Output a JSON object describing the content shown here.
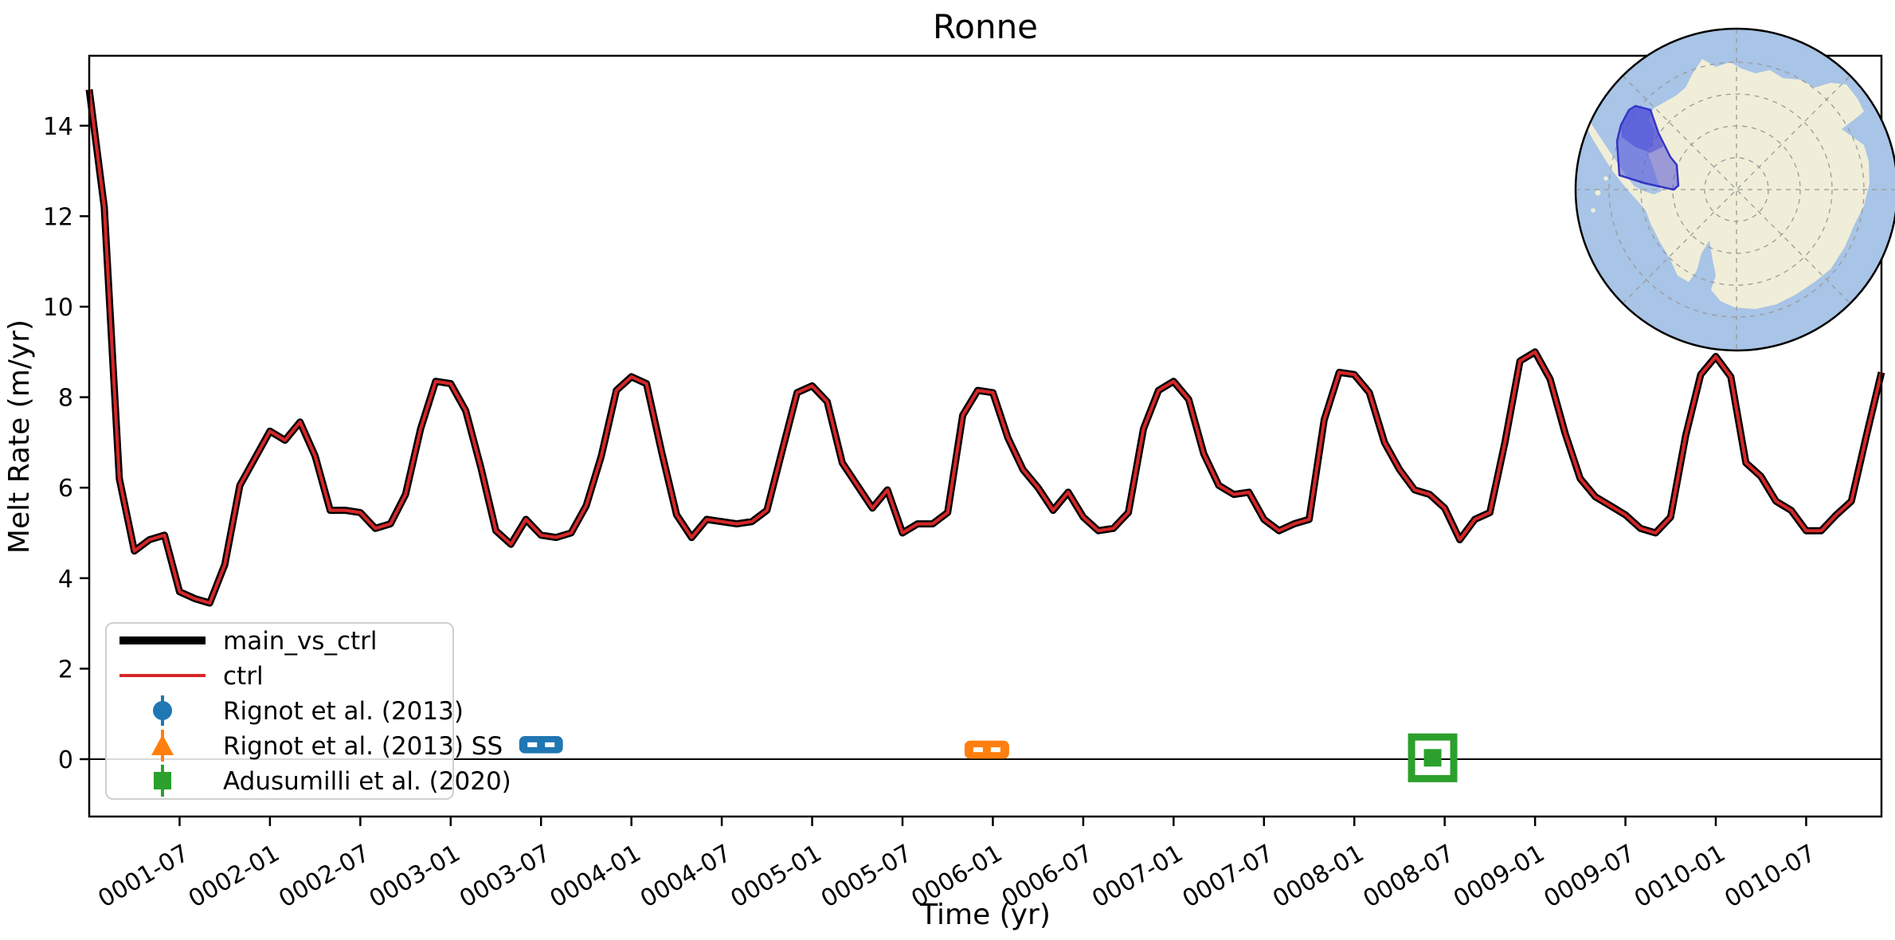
{
  "figure": {
    "title": "Ronne",
    "xlabel": "Time (yr)",
    "ylabel": "Melt Rate (m/yr)"
  },
  "legend": {
    "entries": [
      {
        "label": "main_vs_ctrl",
        "swatch": "thick-black-line",
        "color": "#000000"
      },
      {
        "label": "ctrl",
        "swatch": "thin-red-line",
        "color": "#d62728"
      },
      {
        "label": "Rignot et al. (2013)",
        "swatch": "circle-with-errorbar",
        "color": "#1f77b4"
      },
      {
        "label": "Rignot et al. (2013) SS",
        "swatch": "triangle-with-errorbar",
        "color": "#ff7f0e"
      },
      {
        "label": "Adusumilli et al. (2020)",
        "swatch": "square-with-errorbar",
        "color": "#2ca02c"
      }
    ]
  },
  "chart_data": {
    "type": "line",
    "title": "Ronne",
    "xlabel": "Time (yr)",
    "ylabel": "Melt Rate (m/yr)",
    "x_start": "0001-01",
    "x_end": "0010-12",
    "x_step_months": 1,
    "n_points": 120,
    "ylim": [
      -1.3,
      15.5
    ],
    "y_ticks": [
      0,
      2,
      4,
      6,
      8,
      10,
      12,
      14
    ],
    "x_tick_month_indices": [
      6,
      12,
      18,
      24,
      30,
      36,
      42,
      48,
      54,
      60,
      66,
      72,
      78,
      84,
      90,
      96,
      102,
      108,
      114
    ],
    "x_tick_labels": [
      "0001-07",
      "0002-01",
      "0002-07",
      "0003-01",
      "0003-07",
      "0004-01",
      "0004-07",
      "0005-01",
      "0005-07",
      "0006-01",
      "0006-07",
      "0007-01",
      "0007-07",
      "0008-01",
      "0008-07",
      "0009-01",
      "0009-07",
      "0010-01",
      "0010-07"
    ],
    "x_tick_rotation_deg": 30,
    "grid": false,
    "zero_line": 0,
    "series": [
      {
        "name": "main_vs_ctrl",
        "color": "#000000",
        "style": "thick",
        "values": [
          14.8,
          12.2,
          6.2,
          4.6,
          4.85,
          4.95,
          3.7,
          3.55,
          3.45,
          4.3,
          6.05,
          6.65,
          7.25,
          7.05,
          7.45,
          6.7,
          5.5,
          5.5,
          5.45,
          5.1,
          5.2,
          5.85,
          7.3,
          8.35,
          8.3,
          7.7,
          6.45,
          5.05,
          4.75,
          5.3,
          4.95,
          4.9,
          5.0,
          5.6,
          6.7,
          8.15,
          8.45,
          8.3,
          6.8,
          5.4,
          4.9,
          5.3,
          5.25,
          5.2,
          5.25,
          5.5,
          6.8,
          8.1,
          8.25,
          7.9,
          6.55,
          6.05,
          5.55,
          5.95,
          5.0,
          5.2,
          5.2,
          5.45,
          7.6,
          8.15,
          8.1,
          7.1,
          6.4,
          6.0,
          5.5,
          5.9,
          5.35,
          5.05,
          5.1,
          5.45,
          7.3,
          8.15,
          8.35,
          7.95,
          6.75,
          6.05,
          5.85,
          5.9,
          5.3,
          5.05,
          5.2,
          5.3,
          7.5,
          8.55,
          8.5,
          8.1,
          7.0,
          6.4,
          5.95,
          5.85,
          5.55,
          4.85,
          5.3,
          5.45,
          7.0,
          8.8,
          9.0,
          8.4,
          7.2,
          6.2,
          5.8,
          5.6,
          5.4,
          5.1,
          5.0,
          5.35,
          7.15,
          8.5,
          8.9,
          8.45,
          6.55,
          6.25,
          5.7,
          5.5,
          5.05,
          5.05,
          5.4,
          5.7,
          7.15,
          8.55
        ]
      },
      {
        "name": "ctrl",
        "color": "#d62728",
        "style": "thin",
        "values_same_as": "main_vs_ctrl"
      }
    ],
    "observations": [
      {
        "name": "Rignot et al. (2013)",
        "color": "#1f77b4",
        "marker": "circle",
        "date": "0003-07",
        "month_index": 30.0,
        "melt_rate": 0.32,
        "xerr_months": 1.45,
        "yerr": 0.19
      },
      {
        "name": "Rignot et al. (2013) SS",
        "color": "#ff7f0e",
        "marker": "triangle",
        "date": "0006-01",
        "month_index": 59.6,
        "melt_rate": 0.21,
        "xerr_months": 1.48,
        "yerr": 0.2
      },
      {
        "name": "Adusumilli et al. (2020)",
        "color": "#2ca02c",
        "marker": "square",
        "date": "0008-06",
        "month_index": 89.2,
        "melt_rate": 0.03,
        "xerr_months": 1.4,
        "yerr": 0.46
      }
    ]
  },
  "inset_map": {
    "description": "Antarctica polar stereographic inset with Ronne region highlighted",
    "ocean_color": "#a8c4e6",
    "land_color": "#f0eed8",
    "region_fill": "#5555d7",
    "region_outline": "#3434c6",
    "graticule_color": "#9a9a9a"
  }
}
